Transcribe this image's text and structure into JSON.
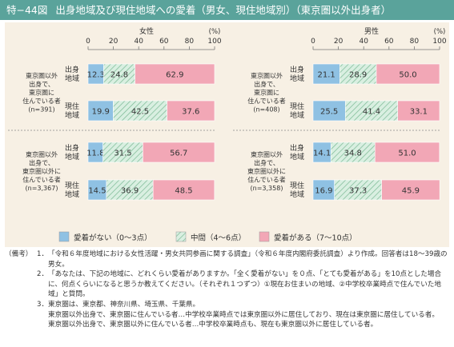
{
  "header": {
    "figure_no": "特−44図",
    "title": "出身地域及び現住地域への愛着（男女、現住地域別）（東京圏以外出身者）"
  },
  "colors": {
    "none": "#8fc1e3",
    "middle": "#d9efe1",
    "middle_hatch": "#7ab893",
    "some": "#f2a7b6",
    "panel": "#f7f0e4",
    "title_bar": "#5aa39b"
  },
  "chart_data": [
    {
      "type": "bar",
      "stacked": true,
      "orientation": "horizontal",
      "title": "女性",
      "unit": "(%)",
      "xlim": [
        0,
        100
      ],
      "ticks": [
        "0",
        "20",
        "40",
        "60",
        "80",
        "100"
      ],
      "groups": [
        {
          "label": "東京圏以外\n出身で、\n東京圏に\n住んでいる者\n(n=391)",
          "rows": [
            {
              "label": "出身\n地域",
              "values": [
                12.3,
                24.8,
                62.9
              ]
            },
            {
              "label": "現住\n地域",
              "values": [
                19.9,
                42.5,
                37.6
              ]
            }
          ]
        },
        {
          "label": "東京圏以外\n出身で、\n東京圏以外に\n住んでいる者\n(n=3,367)",
          "rows": [
            {
              "label": "出身\n地域",
              "values": [
                11.8,
                31.5,
                56.7
              ]
            },
            {
              "label": "現住\n地域",
              "values": [
                14.5,
                36.9,
                48.5
              ]
            }
          ]
        }
      ]
    },
    {
      "type": "bar",
      "stacked": true,
      "orientation": "horizontal",
      "title": "男性",
      "unit": "(%)",
      "xlim": [
        0,
        100
      ],
      "ticks": [
        "0",
        "20",
        "40",
        "60",
        "80",
        "100"
      ],
      "groups": [
        {
          "label": "東京圏以外\n出身で、\n東京圏に\n住んでいる者\n(n=408)",
          "rows": [
            {
              "label": "出身\n地域",
              "values": [
                21.1,
                28.9,
                50.0
              ]
            },
            {
              "label": "現住\n地域",
              "values": [
                25.5,
                41.4,
                33.1
              ]
            }
          ]
        },
        {
          "label": "東京圏以外\n出身で、\n東京圏以外に\n住んでいる者\n(n=3,358)",
          "rows": [
            {
              "label": "出身\n地域",
              "values": [
                14.1,
                34.8,
                51.0
              ]
            },
            {
              "label": "現住\n地域",
              "values": [
                16.9,
                37.3,
                45.9
              ]
            }
          ]
        }
      ]
    }
  ],
  "legend": [
    {
      "label": "愛着がない（0〜3点）",
      "key": "none"
    },
    {
      "label": "中間（4〜6点）",
      "key": "middle"
    },
    {
      "label": "愛着がある（7〜10点）",
      "key": "some"
    }
  ],
  "notes": {
    "head": "（備考）",
    "items": [
      {
        "num": "1．",
        "text": "「令和６年度地域における女性活躍・男女共同参画に関する調査」（令和６年度内閣府委託調査）より作成。回答者は18〜39歳の男女。"
      },
      {
        "num": "2．",
        "text": "「あなたは、下記の地域に、どれくらい愛着がありますか。「全く愛着がない」を０点、「とても愛着がある」を10点とした場合に、何点くらいになると思うか教えてください。（それぞれ１つずつ）①現在お住まいの地域、②中学校卒業時点で住んでいた地域」と質問。"
      },
      {
        "num": "3．",
        "text": "東京圏は、東京都、神奈川県、埼玉県、千葉県。"
      }
    ],
    "extra": [
      "東京圏以外出身で、東京圏に住んでいる者…中学校卒業時点では東京圏以外に居住しており、現在は東京圏に居住している者。",
      "東京圏以外出身で、東京圏以外に住んでいる者…中学校卒業時点も、現在も東京圏以外に居住している者。"
    ]
  }
}
